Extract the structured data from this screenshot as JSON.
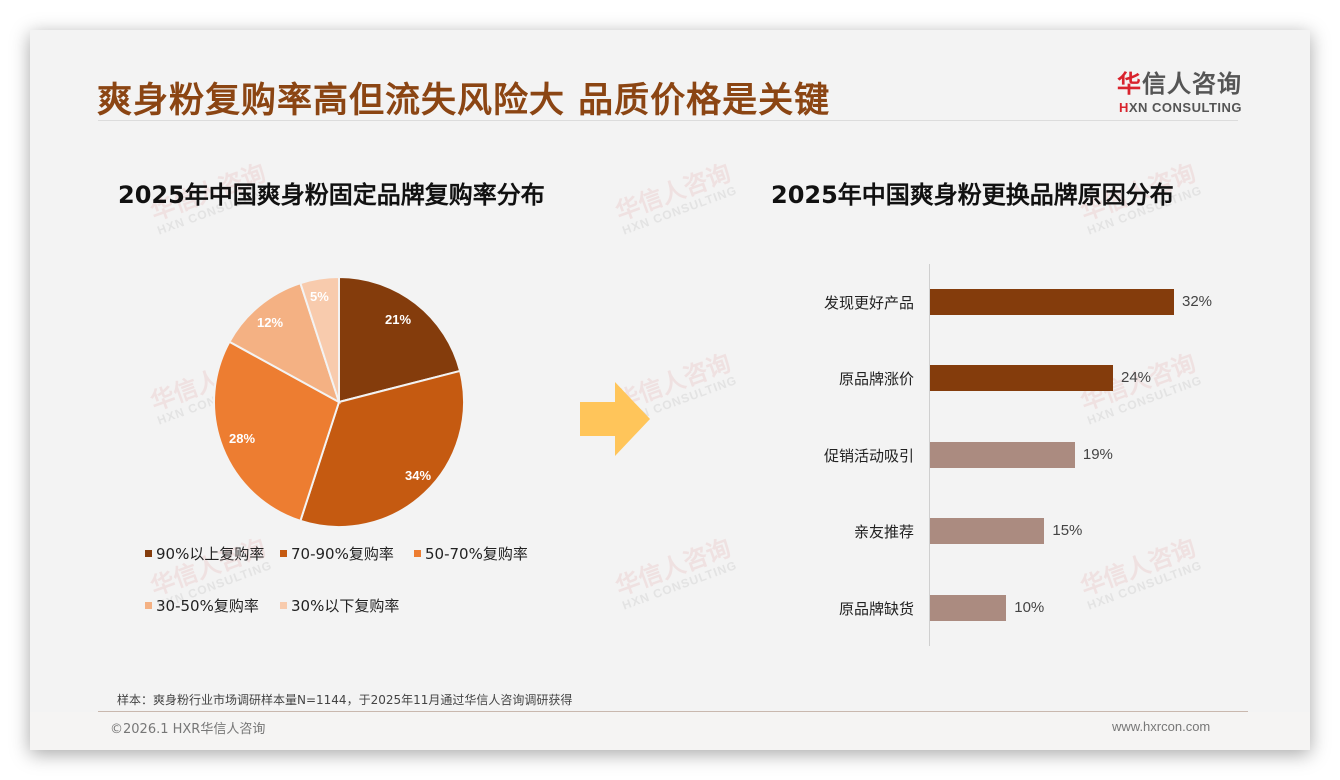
{
  "slide": {
    "title": "爽身粉复购率高但流失风险大 品质价格是关键",
    "logo": {
      "cn_first": "华",
      "cn_rest": "信人咨询",
      "en_first": "H",
      "en_rest": "XN CONSULTING"
    },
    "watermark": {
      "cn": "华信人咨询",
      "en": "HXN CONSULTING"
    },
    "note": "样本：爽身粉行业市场调研样本量N=1144，于2025年11月通过华信人咨询调研获得",
    "copyright": "©2026.1 HXR华信人咨询",
    "website": "www.hxrcon.com",
    "arrow_color": "#ffc55a"
  },
  "chart_data": [
    {
      "type": "pie",
      "title": "2025年中国爽身粉固定品牌复购率分布",
      "categories": [
        "90%以上复购率",
        "70-90%复购率",
        "50-70%复购率",
        "30-50%复购率",
        "30%以下复购率"
      ],
      "values": [
        21,
        34,
        28,
        12,
        5
      ],
      "labels": [
        "21%",
        "34%",
        "28%",
        "12%",
        "5%"
      ],
      "colors": [
        "#843c0c",
        "#c55a11",
        "#ed7d31",
        "#f4b183",
        "#f8cbad"
      ],
      "legend_position": "bottom"
    },
    {
      "type": "bar",
      "orientation": "horizontal",
      "title": "2025年中国爽身粉更换品牌原因分布",
      "categories": [
        "发现更好产品",
        "原品牌涨价",
        "促销活动吸引",
        "亲友推荐",
        "原品牌缺货"
      ],
      "values": [
        32,
        24,
        19,
        15,
        10
      ],
      "labels": [
        "32%",
        "24%",
        "19%",
        "15%",
        "10%"
      ],
      "colors": [
        "#843c0c",
        "#843c0c",
        "#ab8b80",
        "#ab8b80",
        "#ab8b80"
      ],
      "xlim": [
        0,
        35
      ],
      "grid": false
    }
  ]
}
